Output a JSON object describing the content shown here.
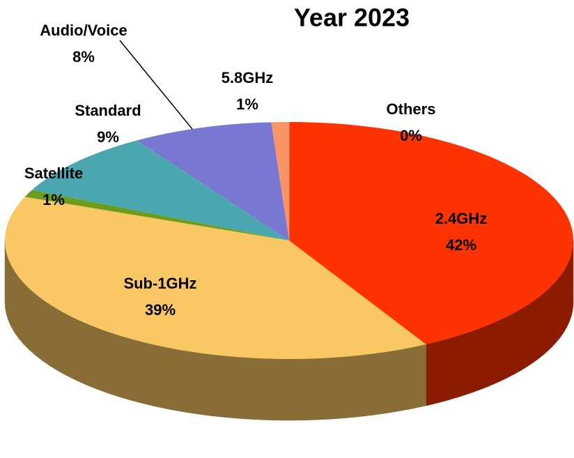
{
  "chart_data": {
    "type": "pie3d",
    "title": "Year 2023",
    "categories": [
      "2.4GHz",
      "Sub-1GHz",
      "Satellite",
      "Standard",
      "Audio/Voice",
      "5.8GHz",
      "Others"
    ],
    "values": [
      42,
      39,
      1,
      9,
      8,
      1,
      0
    ],
    "value_labels": [
      "42%",
      "39%",
      "1%",
      "9%",
      "8%",
      "1%",
      "0%"
    ],
    "colors": [
      "#ff3300",
      "#f9c763",
      "#6b9c1c",
      "#4aa7b0",
      "#7878d2",
      "#fa9462",
      "#a0a0a0"
    ]
  }
}
